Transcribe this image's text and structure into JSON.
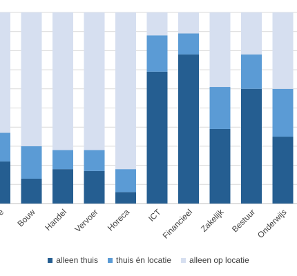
{
  "chart_data": {
    "type": "bar",
    "stacked": true,
    "categories": [
      "…re",
      "Bouw",
      "Handel",
      "Vervoer",
      "Horeca",
      "ICT",
      "Financieel",
      "Zakelijk",
      "Bestuur",
      "Onderwijs"
    ],
    "series": [
      {
        "name": "alleen thuis",
        "color": "#255e91",
        "values": [
          22,
          13,
          18,
          17,
          6,
          69,
          78,
          39,
          60,
          35
        ]
      },
      {
        "name": "thuis én locatie",
        "color": "#5b9bd5",
        "values": [
          15,
          17,
          10,
          11,
          12,
          19,
          11,
          22,
          18,
          25
        ]
      },
      {
        "name": "alleen op locatie",
        "color": "#d6dff0",
        "values": [
          63,
          70,
          72,
          72,
          82,
          12,
          11,
          39,
          22,
          40
        ]
      }
    ],
    "ylim": [
      0,
      100
    ],
    "grid": true,
    "legend_position": "bottom"
  }
}
